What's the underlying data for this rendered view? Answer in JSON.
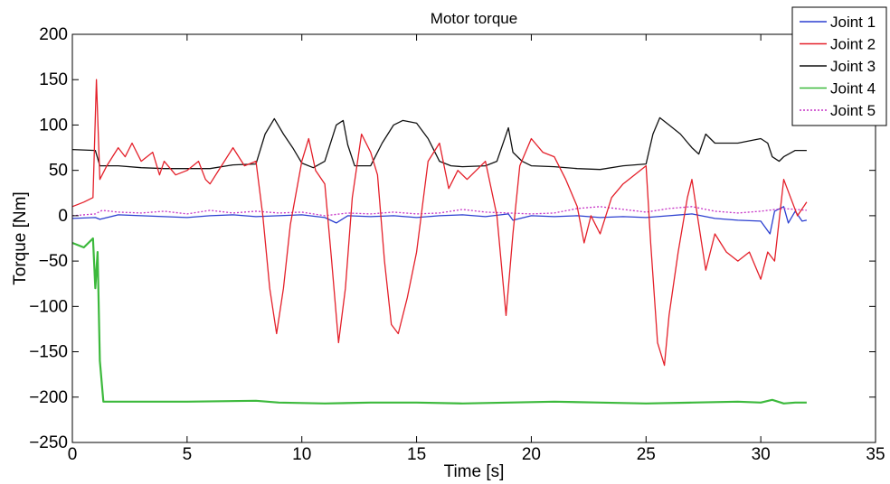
{
  "chart_data": {
    "type": "line",
    "title": "Motor torque",
    "xlabel": "Time [s]",
    "ylabel": "Torque [Nm]",
    "xlim": [
      0,
      35
    ],
    "ylim": [
      -250,
      200
    ],
    "xticks": [
      0,
      5,
      10,
      15,
      20,
      25,
      30,
      35
    ],
    "yticks": [
      -250,
      -200,
      -150,
      -100,
      -50,
      0,
      50,
      100,
      150,
      200
    ],
    "grid": false,
    "legend_position": "top-right",
    "series": [
      {
        "name": "Joint 1",
        "color": "#2b3fd0",
        "style": "solid",
        "points": [
          [
            0,
            -3
          ],
          [
            1,
            -2
          ],
          [
            1.2,
            -4
          ],
          [
            2,
            1
          ],
          [
            3,
            0
          ],
          [
            4,
            -1
          ],
          [
            5,
            -2
          ],
          [
            6,
            0
          ],
          [
            7,
            1
          ],
          [
            8,
            -1
          ],
          [
            9,
            0
          ],
          [
            10,
            1
          ],
          [
            11,
            -2
          ],
          [
            11.5,
            -8
          ],
          [
            12,
            0
          ],
          [
            13,
            -1
          ],
          [
            14,
            0
          ],
          [
            15,
            -2
          ],
          [
            16,
            0
          ],
          [
            17,
            1
          ],
          [
            18,
            -1
          ],
          [
            19,
            2
          ],
          [
            19.2,
            -5
          ],
          [
            20,
            0
          ],
          [
            21,
            -1
          ],
          [
            22,
            0
          ],
          [
            23,
            -2
          ],
          [
            24,
            -1
          ],
          [
            25,
            -2
          ],
          [
            26,
            0
          ],
          [
            27,
            2
          ],
          [
            28,
            -3
          ],
          [
            29,
            -5
          ],
          [
            30,
            -6
          ],
          [
            30.4,
            -20
          ],
          [
            30.6,
            5
          ],
          [
            31,
            10
          ],
          [
            31.2,
            -8
          ],
          [
            31.5,
            5
          ],
          [
            31.8,
            -6
          ],
          [
            32,
            -5
          ]
        ]
      },
      {
        "name": "Joint 2",
        "color": "#e4202a",
        "style": "solid",
        "points": [
          [
            0,
            10
          ],
          [
            0.5,
            15
          ],
          [
            0.9,
            20
          ],
          [
            1.05,
            150
          ],
          [
            1.2,
            40
          ],
          [
            1.5,
            55
          ],
          [
            2,
            75
          ],
          [
            2.3,
            65
          ],
          [
            2.6,
            80
          ],
          [
            3,
            60
          ],
          [
            3.5,
            70
          ],
          [
            3.8,
            45
          ],
          [
            4,
            60
          ],
          [
            4.5,
            45
          ],
          [
            5,
            50
          ],
          [
            5.5,
            60
          ],
          [
            5.8,
            40
          ],
          [
            6,
            35
          ],
          [
            6.5,
            55
          ],
          [
            7,
            75
          ],
          [
            7.5,
            55
          ],
          [
            8,
            60
          ],
          [
            8.3,
            0
          ],
          [
            8.6,
            -80
          ],
          [
            8.9,
            -130
          ],
          [
            9.2,
            -80
          ],
          [
            9.5,
            -10
          ],
          [
            10,
            60
          ],
          [
            10.3,
            85
          ],
          [
            10.6,
            50
          ],
          [
            11,
            35
          ],
          [
            11.3,
            -50
          ],
          [
            11.6,
            -140
          ],
          [
            11.9,
            -80
          ],
          [
            12.2,
            20
          ],
          [
            12.6,
            90
          ],
          [
            13,
            70
          ],
          [
            13.3,
            45
          ],
          [
            13.6,
            -50
          ],
          [
            13.9,
            -120
          ],
          [
            14.2,
            -130
          ],
          [
            14.6,
            -90
          ],
          [
            15,
            -40
          ],
          [
            15.5,
            60
          ],
          [
            16,
            80
          ],
          [
            16.4,
            30
          ],
          [
            16.8,
            50
          ],
          [
            17.2,
            40
          ],
          [
            17.6,
            50
          ],
          [
            18,
            60
          ],
          [
            18.5,
            0
          ],
          [
            18.9,
            -110
          ],
          [
            19.2,
            -20
          ],
          [
            19.5,
            55
          ],
          [
            20,
            85
          ],
          [
            20.5,
            70
          ],
          [
            21,
            65
          ],
          [
            21.5,
            40
          ],
          [
            22,
            10
          ],
          [
            22.3,
            -30
          ],
          [
            22.6,
            0
          ],
          [
            23,
            -20
          ],
          [
            23.5,
            20
          ],
          [
            24,
            35
          ],
          [
            25,
            55
          ],
          [
            25.2,
            -30
          ],
          [
            25.5,
            -140
          ],
          [
            25.8,
            -165
          ],
          [
            26,
            -110
          ],
          [
            26.4,
            -40
          ],
          [
            26.8,
            20
          ],
          [
            27,
            40
          ],
          [
            27.3,
            -10
          ],
          [
            27.6,
            -60
          ],
          [
            28,
            -20
          ],
          [
            28.5,
            -40
          ],
          [
            29,
            -50
          ],
          [
            29.5,
            -40
          ],
          [
            30,
            -70
          ],
          [
            30.3,
            -40
          ],
          [
            30.6,
            -50
          ],
          [
            31,
            40
          ],
          [
            31.3,
            20
          ],
          [
            31.6,
            0
          ],
          [
            32,
            15
          ]
        ]
      },
      {
        "name": "Joint 3",
        "color": "#111111",
        "style": "solid",
        "points": [
          [
            0,
            73
          ],
          [
            1,
            72
          ],
          [
            1.2,
            55
          ],
          [
            2,
            55
          ],
          [
            3,
            53
          ],
          [
            4,
            52
          ],
          [
            5,
            52
          ],
          [
            6,
            52
          ],
          [
            7,
            56
          ],
          [
            8,
            57
          ],
          [
            8.4,
            90
          ],
          [
            8.8,
            107
          ],
          [
            9.2,
            90
          ],
          [
            9.6,
            75
          ],
          [
            10,
            58
          ],
          [
            10.5,
            53
          ],
          [
            11,
            60
          ],
          [
            11.5,
            100
          ],
          [
            11.8,
            105
          ],
          [
            12,
            78
          ],
          [
            12.3,
            55
          ],
          [
            13,
            55
          ],
          [
            13.5,
            80
          ],
          [
            14,
            100
          ],
          [
            14.4,
            105
          ],
          [
            15,
            102
          ],
          [
            15.5,
            85
          ],
          [
            16,
            60
          ],
          [
            16.5,
            55
          ],
          [
            17,
            54
          ],
          [
            18,
            55
          ],
          [
            18.5,
            60
          ],
          [
            19,
            97
          ],
          [
            19.2,
            70
          ],
          [
            19.6,
            60
          ],
          [
            20,
            55
          ],
          [
            21,
            54
          ],
          [
            22,
            52
          ],
          [
            23,
            51
          ],
          [
            24,
            55
          ],
          [
            25,
            57
          ],
          [
            25.3,
            90
          ],
          [
            25.6,
            108
          ],
          [
            26,
            100
          ],
          [
            26.5,
            90
          ],
          [
            27,
            75
          ],
          [
            27.3,
            68
          ],
          [
            27.6,
            90
          ],
          [
            28,
            80
          ],
          [
            29,
            80
          ],
          [
            30,
            85
          ],
          [
            30.3,
            80
          ],
          [
            30.5,
            65
          ],
          [
            30.8,
            60
          ],
          [
            31,
            65
          ],
          [
            31.5,
            72
          ],
          [
            32,
            72
          ]
        ]
      },
      {
        "name": "Joint 4",
        "color": "#3cb93c",
        "style": "solid",
        "points": [
          [
            0,
            -30
          ],
          [
            0.5,
            -35
          ],
          [
            0.9,
            -25
          ],
          [
            1.0,
            -80
          ],
          [
            1.1,
            -40
          ],
          [
            1.2,
            -160
          ],
          [
            1.35,
            -205
          ],
          [
            3,
            -205
          ],
          [
            5,
            -205
          ],
          [
            8,
            -204
          ],
          [
            9,
            -206
          ],
          [
            11,
            -207
          ],
          [
            13,
            -206
          ],
          [
            15,
            -206
          ],
          [
            17,
            -207
          ],
          [
            19,
            -206
          ],
          [
            21,
            -205
          ],
          [
            23,
            -206
          ],
          [
            25,
            -207
          ],
          [
            27,
            -206
          ],
          [
            29,
            -205
          ],
          [
            30,
            -206
          ],
          [
            30.5,
            -203
          ],
          [
            31,
            -207
          ],
          [
            31.5,
            -206
          ],
          [
            32,
            -206
          ]
        ]
      },
      {
        "name": "Joint 5",
        "color": "#c631c6",
        "style": "dotted",
        "points": [
          [
            0,
            0
          ],
          [
            1,
            2
          ],
          [
            1.3,
            6
          ],
          [
            2,
            4
          ],
          [
            3,
            3
          ],
          [
            4,
            5
          ],
          [
            5,
            2
          ],
          [
            6,
            6
          ],
          [
            7,
            3
          ],
          [
            8,
            5
          ],
          [
            9,
            3
          ],
          [
            10,
            4
          ],
          [
            11,
            0
          ],
          [
            12,
            3
          ],
          [
            13,
            2
          ],
          [
            14,
            4
          ],
          [
            15,
            2
          ],
          [
            16,
            3
          ],
          [
            17,
            7
          ],
          [
            18,
            4
          ],
          [
            19,
            3
          ],
          [
            20,
            2
          ],
          [
            21,
            3
          ],
          [
            22,
            8
          ],
          [
            23,
            10
          ],
          [
            24,
            7
          ],
          [
            25,
            4
          ],
          [
            26,
            8
          ],
          [
            27,
            10
          ],
          [
            28,
            5
          ],
          [
            29,
            3
          ],
          [
            30,
            5
          ],
          [
            31,
            8
          ],
          [
            32,
            6
          ]
        ]
      }
    ]
  }
}
